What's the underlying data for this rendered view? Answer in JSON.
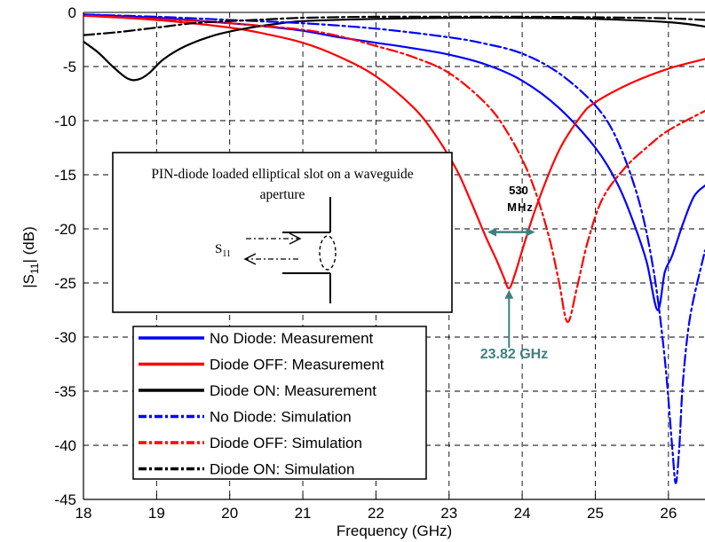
{
  "chart_data": {
    "type": "line",
    "xlabel": "Frequency (GHz)",
    "ylabel_main": "|S",
    "ylabel_sub": "11",
    "ylabel_tail": "| (dB)",
    "xlim": [
      18,
      26.5
    ],
    "ylim": [
      -45,
      0
    ],
    "xticks": [
      "18",
      "19",
      "20",
      "21",
      "22",
      "23",
      "24",
      "25",
      "26"
    ],
    "yticks": [
      "0",
      "-5",
      "-10",
      "-15",
      "-20",
      "-25",
      "-30",
      "-35",
      "-40",
      "-45"
    ],
    "grid": true,
    "legend_position": "bottom-left",
    "series": [
      {
        "name": "No Diode: Measurement",
        "color": "#0000ff",
        "style": "solid",
        "x": [
          18,
          19,
          20,
          20.5,
          21,
          21.5,
          22,
          22.5,
          23,
          23.5,
          24,
          24.5,
          25,
          25.3,
          25.5,
          25.7,
          25.85,
          25.95,
          26.05,
          26.2,
          26.35,
          26.5
        ],
        "y": [
          -0.2,
          -0.5,
          -1.0,
          -1.3,
          -1.7,
          -2.3,
          -2.8,
          -3.3,
          -3.9,
          -4.8,
          -6.3,
          -8.8,
          -12.5,
          -15.8,
          -19,
          -23,
          -27.5,
          -24,
          -22.5,
          -19.5,
          -17,
          -16
        ]
      },
      {
        "name": "Diode OFF: Measurement",
        "color": "#ff0000",
        "style": "solid",
        "x": [
          18,
          19,
          20,
          20.5,
          21,
          21.5,
          22,
          22.5,
          22.8,
          23.1,
          23.3,
          23.5,
          23.65,
          23.75,
          23.82,
          23.9,
          24.0,
          24.2,
          24.5,
          24.8,
          25.0,
          25.5,
          26.0,
          26.5
        ],
        "y": [
          -0.3,
          -0.7,
          -1.4,
          -2.0,
          -2.8,
          -4.1,
          -5.9,
          -8.7,
          -11.2,
          -14.5,
          -17.5,
          -20.7,
          -22.9,
          -24.5,
          -25.5,
          -24.2,
          -22,
          -17.8,
          -12.8,
          -9.6,
          -8.3,
          -6.5,
          -5.2,
          -4.3
        ]
      },
      {
        "name": "Diode ON: Measurement",
        "color": "#000000",
        "style": "solid",
        "x": [
          18,
          18.2,
          18.4,
          18.6,
          18.75,
          18.9,
          19.1,
          19.4,
          19.8,
          20.2,
          20.6,
          21,
          22,
          23,
          24,
          25,
          26,
          26.5
        ],
        "y": [
          -2.7,
          -3.7,
          -5.0,
          -6.1,
          -6.2,
          -5.6,
          -4.3,
          -3.1,
          -2.1,
          -1.5,
          -1.1,
          -0.8,
          -0.6,
          -0.5,
          -0.5,
          -0.6,
          -0.9,
          -1.3
        ]
      },
      {
        "name": "No Diode: Simulation",
        "color": "#0000ff",
        "style": "dashdot",
        "x": [
          18,
          19,
          20,
          21,
          22,
          23,
          23.5,
          24,
          24.5,
          25,
          25.3,
          25.6,
          25.8,
          25.95,
          26.05,
          26.1,
          26.15,
          26.2,
          26.3,
          26.5
        ],
        "y": [
          -0.2,
          -0.4,
          -0.7,
          -1.0,
          -1.5,
          -2.3,
          -2.9,
          -3.8,
          -5.6,
          -8.6,
          -11.8,
          -17.5,
          -24,
          -32,
          -40,
          -43.5,
          -40,
          -34,
          -28,
          -22
        ]
      },
      {
        "name": "Diode OFF: Simulation",
        "color": "#ff0000",
        "style": "dashdot",
        "x": [
          18,
          19,
          20,
          21,
          21.5,
          22,
          22.5,
          23,
          23.5,
          23.8,
          24.1,
          24.35,
          24.5,
          24.62,
          24.75,
          24.9,
          25.1,
          25.4,
          25.7,
          26.0,
          26.5
        ],
        "y": [
          -0.3,
          -0.6,
          -1.0,
          -1.6,
          -2.2,
          -3.1,
          -4.1,
          -5.6,
          -8.4,
          -11.1,
          -15.1,
          -20.3,
          -24.8,
          -28.6,
          -25.4,
          -21.1,
          -17.2,
          -14.4,
          -12.5,
          -10.9,
          -9.1
        ]
      },
      {
        "name": "Diode ON: Simulation",
        "color": "#000000",
        "style": "dashdot",
        "x": [
          18,
          18.5,
          19,
          19.5,
          20,
          20.5,
          21,
          22,
          23,
          24,
          25,
          26,
          26.5
        ],
        "y": [
          -2.1,
          -1.8,
          -1.4,
          -1.0,
          -0.8,
          -0.65,
          -0.5,
          -0.4,
          -0.4,
          -0.4,
          -0.45,
          -0.55,
          -0.7
        ]
      }
    ],
    "annotations": {
      "bandwidth": {
        "value": "530",
        "unit": "MHz",
        "x_left": 23.55,
        "x_right": 24.15,
        "y": -20.3
      },
      "resonance": {
        "label": "23.82 GHz",
        "x": 23.82,
        "y_tip": -25.8,
        "y_tail": -31
      }
    }
  },
  "inset": {
    "title_line1": "PIN-diode loaded elliptical slot on a waveguide",
    "title_line2": "aperture",
    "port_label_main": "S",
    "port_label_sub": "11"
  }
}
